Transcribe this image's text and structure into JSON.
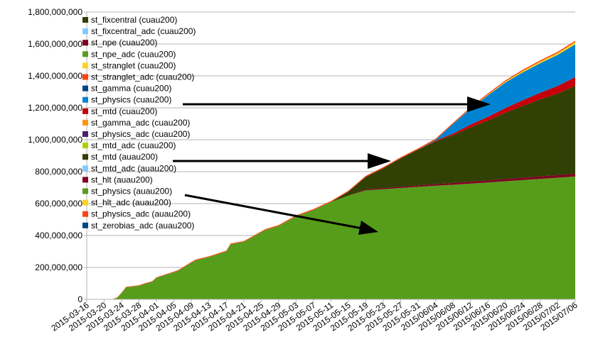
{
  "chart_data": {
    "type": "area",
    "stacked": true,
    "title": "",
    "xlabel": "",
    "ylabel": "",
    "ylim": [
      0,
      1800000000
    ],
    "y_ticks": [
      "0",
      "200,000,000",
      "400,000,000",
      "600,000,000",
      "800,000,000",
      "1,000,000,000",
      "1,200,000,000",
      "1,400,000,000",
      "1,600,000,000",
      "1,800,000,000"
    ],
    "y_tick_values": [
      0,
      200000000,
      400000000,
      600000000,
      800000000,
      1000000000,
      1200000000,
      1400000000,
      1600000000,
      1800000000
    ],
    "x_start": "2015-03-16",
    "x_end": "2015-07-06",
    "x_ticks": [
      "2015-03-16",
      "2015-03-20",
      "2015-03-24",
      "2015-03-28",
      "2015-04-01",
      "2015-04-05",
      "2015-04-09",
      "2015-04-13",
      "2015-04-17",
      "2015-04-21",
      "2015-04-25",
      "2015-04-29",
      "2015-05-03",
      "2015-05-07",
      "2015-05-11",
      "2015-05-15",
      "2015-05-19",
      "2015-05-23",
      "2015-05-27",
      "2015-05-31",
      "2015/06/04",
      "2015/06/08",
      "2015/06/12",
      "2015/06/16",
      "2015/06/20",
      "2015/06/24",
      "2015/06/28",
      "2015/07/02",
      "2015/07/06"
    ],
    "grid": "horizontal",
    "legend_placement": "top-left",
    "legend": [
      {
        "name": "st_fixcentral (cuau200)",
        "color": "#314004"
      },
      {
        "name": "st_fixcentral_adc (cuau200)",
        "color": "#83caff"
      },
      {
        "name": "st_npe (cuau200)",
        "color": "#7e0021"
      },
      {
        "name": "st_npe_adc (cuau200)",
        "color": "#579d1c"
      },
      {
        "name": "st_stranglet (cuau200)",
        "color": "#ffd320"
      },
      {
        "name": "st_stranglet_adc (cuau200)",
        "color": "#ff420e"
      },
      {
        "name": "st_gamma (cuau200)",
        "color": "#004586"
      },
      {
        "name": "st_physics (cuau200)",
        "color": "#0084d1"
      },
      {
        "name": "st_mtd (cuau200)",
        "color": "#c5000b"
      },
      {
        "name": "st_gamma_adc (cuau200)",
        "color": "#ff950e"
      },
      {
        "name": "st_physics_adc (cuau200)",
        "color": "#4b1f6f"
      },
      {
        "name": "st_mtd_adc (cuau200)",
        "color": "#aecf00"
      },
      {
        "name": "st_mtd (auau200)",
        "color": "#314004"
      },
      {
        "name": "st_mtd_adc (auau200)",
        "color": "#83caff"
      },
      {
        "name": "st_hlt (auau200)",
        "color": "#7e0021"
      },
      {
        "name": "st_physics (auau200)",
        "color": "#579d1c"
      },
      {
        "name": "st_hlt_adc (auau200)",
        "color": "#ffd320"
      },
      {
        "name": "st_physics_adc (auau200)",
        "color": "#ff420e"
      },
      {
        "name": "st_zerobias_adc (auau200)",
        "color": "#004586"
      }
    ],
    "series": [
      {
        "name": "st_physics (auau200)",
        "color": "#579d1c",
        "x": [
          "2015-03-16",
          "2015-03-20",
          "2015-03-22",
          "2015-03-23",
          "2015-03-24",
          "2015-03-25",
          "2015-03-28",
          "2015-03-29",
          "2015-03-31",
          "2015-04-01",
          "2015-04-05",
          "2015-04-06",
          "2015-04-09",
          "2015-04-10",
          "2015-04-13",
          "2015-04-17",
          "2015-04-18",
          "2015-04-21",
          "2015-04-25",
          "2015-04-26",
          "2015-04-29",
          "2015-05-03",
          "2015-05-07",
          "2015-05-11",
          "2015-05-15",
          "2015-05-19",
          "2015-05-23",
          "2015-05-27",
          "2015-05-31",
          "2015/06/04",
          "2015/06/08",
          "2015/06/12",
          "2015/06/16",
          "2015/06/20",
          "2015/06/24",
          "2015/06/28",
          "2015/07/02",
          "2015/07/06"
        ],
        "values": [
          0,
          0,
          0,
          10000000,
          40000000,
          75000000,
          85000000,
          95000000,
          110000000,
          135000000,
          170000000,
          180000000,
          230000000,
          245000000,
          265000000,
          300000000,
          345000000,
          360000000,
          420000000,
          435000000,
          460000000,
          520000000,
          560000000,
          610000000,
          650000000,
          683000000,
          690000000,
          698000000,
          705000000,
          712000000,
          718000000,
          725000000,
          732000000,
          740000000,
          747000000,
          755000000,
          762000000,
          770000000
        ]
      },
      {
        "name": "st_hlt (auau200)",
        "color": "#7e0021",
        "x": [
          "2015-05-15",
          "2015-05-19",
          "2015-05-23",
          "2015-05-27",
          "2015-05-31",
          "2015/06/04",
          "2015/06/08",
          "2015/06/12",
          "2015/06/16",
          "2015/06/20",
          "2015/06/24",
          "2015/06/28",
          "2015/07/02",
          "2015/07/06"
        ],
        "values": [
          0,
          5000000,
          7000000,
          8000000,
          9000000,
          10000000,
          11000000,
          12000000,
          13000000,
          14000000,
          15000000,
          16000000,
          17000000,
          18000000
        ]
      },
      {
        "name": "st_mtd (auau200)",
        "color": "#314004",
        "x": [
          "2015-05-11",
          "2015-05-15",
          "2015-05-19",
          "2015-05-23",
          "2015-05-27",
          "2015-05-31",
          "2015/06/04",
          "2015/06/08",
          "2015/06/12",
          "2015/06/16",
          "2015/06/20",
          "2015/06/24",
          "2015/06/28",
          "2015/07/02",
          "2015/07/06"
        ],
        "values": [
          0,
          25000000,
          80000000,
          125000000,
          178000000,
          225000000,
          268000000,
          300000000,
          340000000,
          375000000,
          415000000,
          450000000,
          482000000,
          510000000,
          550000000
        ]
      },
      {
        "name": "st_mtd (cuau200)",
        "color": "#c5000b",
        "x": [
          "2015-05-31",
          "2015/06/04",
          "2015/06/08",
          "2015/06/12",
          "2015/06/16",
          "2015/06/20",
          "2015/06/24",
          "2015/06/28",
          "2015/07/02",
          "2015/07/06"
        ],
        "values": [
          0,
          5000000,
          10000000,
          18000000,
          24000000,
          30000000,
          36000000,
          42000000,
          48000000,
          55000000
        ]
      },
      {
        "name": "st_physics (cuau200)",
        "color": "#0084d1",
        "x": [
          "2015-05-31",
          "2015/06/04",
          "2015/06/08",
          "2015/06/12",
          "2015/06/16",
          "2015/06/20",
          "2015/06/24",
          "2015/06/28",
          "2015/07/02",
          "2015/07/06"
        ],
        "values": [
          0,
          5000000,
          60000000,
          100000000,
          135000000,
          160000000,
          175000000,
          185000000,
          195000000,
          205000000
        ]
      },
      {
        "name": "st_stranglet (cuau200)",
        "color": "#ffd320",
        "x": [
          "2015/06/08",
          "2015/06/12",
          "2015/06/16",
          "2015/06/20",
          "2015/06/24",
          "2015/06/28",
          "2015/07/02",
          "2015/07/06"
        ],
        "values": [
          0,
          2000000,
          4000000,
          6000000,
          8000000,
          10000000,
          12000000,
          14000000
        ]
      },
      {
        "name": "st_physics_adc (auau200)",
        "color": "#ff420e",
        "x": [
          "2015-03-16",
          "2015-03-24",
          "2015-05-03",
          "2015/07/06"
        ],
        "values": [
          0,
          3000000,
          6000000,
          8000000
        ]
      }
    ]
  }
}
